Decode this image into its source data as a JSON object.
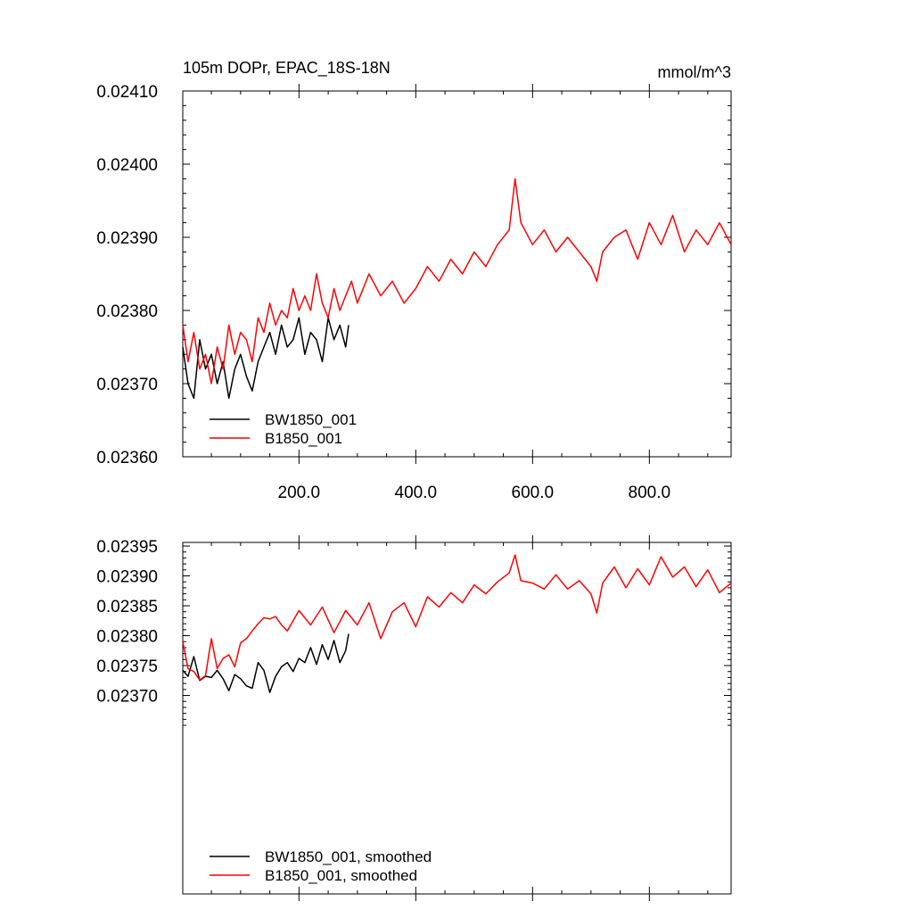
{
  "chart_data": [
    {
      "type": "line",
      "title": "105m DOPr, EPAC_18S-18N",
      "units": "mmol/m^3",
      "xlim": [
        1,
        940
      ],
      "ylim": [
        0.0236,
        0.0241
      ],
      "x_tick_labels": [
        "200.0",
        "400.0",
        "600.0",
        "800.0"
      ],
      "y_tick_labels": [
        "0.02360",
        "0.02370",
        "0.02380",
        "0.02390",
        "0.02400",
        "0.02410"
      ],
      "grid": false,
      "legend_position": "bottom-left",
      "series": [
        {
          "name": "BW1850_001",
          "color": "#000000",
          "x": [
            1,
            10,
            20,
            30,
            40,
            50,
            60,
            70,
            80,
            90,
            100,
            110,
            120,
            130,
            140,
            150,
            160,
            170,
            180,
            190,
            200,
            210,
            220,
            230,
            240,
            250,
            260,
            270,
            280,
            285
          ],
          "y": [
            0.02375,
            0.0237,
            0.02368,
            0.02376,
            0.02372,
            0.02374,
            0.0237,
            0.02373,
            0.02368,
            0.02372,
            0.02374,
            0.02371,
            0.02369,
            0.02373,
            0.02375,
            0.02377,
            0.02374,
            0.02378,
            0.02375,
            0.02376,
            0.02379,
            0.02374,
            0.02377,
            0.02376,
            0.02373,
            0.02379,
            0.02376,
            0.02378,
            0.02375,
            0.02378
          ]
        },
        {
          "name": "B1850_001",
          "color": "#ff0000",
          "x": [
            1,
            10,
            20,
            30,
            40,
            50,
            60,
            70,
            80,
            90,
            100,
            110,
            120,
            130,
            140,
            150,
            160,
            170,
            180,
            190,
            200,
            210,
            220,
            230,
            240,
            250,
            260,
            270,
            280,
            290,
            300,
            320,
            340,
            360,
            380,
            400,
            420,
            440,
            460,
            480,
            500,
            520,
            540,
            560,
            570,
            580,
            600,
            620,
            640,
            660,
            680,
            700,
            710,
            720,
            740,
            760,
            780,
            800,
            820,
            840,
            860,
            880,
            900,
            920,
            940
          ],
          "y": [
            0.02378,
            0.02373,
            0.02377,
            0.02372,
            0.02374,
            0.0237,
            0.02375,
            0.02372,
            0.02378,
            0.02374,
            0.02377,
            0.02376,
            0.02373,
            0.02379,
            0.02377,
            0.02381,
            0.02378,
            0.0238,
            0.02379,
            0.02383,
            0.0238,
            0.02382,
            0.0238,
            0.02385,
            0.02381,
            0.02379,
            0.02383,
            0.0238,
            0.02382,
            0.02384,
            0.02381,
            0.02385,
            0.02382,
            0.02384,
            0.02381,
            0.02383,
            0.02386,
            0.02384,
            0.02387,
            0.02385,
            0.02388,
            0.02386,
            0.02389,
            0.02391,
            0.02398,
            0.02392,
            0.02389,
            0.02391,
            0.02388,
            0.0239,
            0.02388,
            0.02386,
            0.02384,
            0.02388,
            0.0239,
            0.02391,
            0.02387,
            0.02392,
            0.02389,
            0.02393,
            0.02388,
            0.02391,
            0.02389,
            0.02392,
            0.02389
          ]
        }
      ]
    },
    {
      "type": "line",
      "xlim": [
        1,
        940
      ],
      "ylim": [
        0.023368,
        0.023956
      ],
      "y_tick_labels": [
        "0.02370",
        "0.02375",
        "0.02380",
        "0.02385",
        "0.02390",
        "0.02395"
      ],
      "grid": false,
      "legend_position": "bottom-left",
      "series": [
        {
          "name": "BW1850_001, smoothed",
          "color": "#000000",
          "x": [
            1,
            10,
            20,
            30,
            40,
            50,
            60,
            70,
            80,
            90,
            100,
            110,
            120,
            130,
            140,
            150,
            160,
            170,
            180,
            190,
            200,
            210,
            220,
            230,
            240,
            250,
            260,
            270,
            280,
            285
          ],
          "y": [
            0.023742,
            0.023732,
            0.023765,
            0.023725,
            0.023732,
            0.02373,
            0.023742,
            0.023728,
            0.023708,
            0.023735,
            0.023728,
            0.023716,
            0.023712,
            0.023755,
            0.023742,
            0.023705,
            0.023732,
            0.023748,
            0.023755,
            0.02374,
            0.023762,
            0.023755,
            0.02378,
            0.023752,
            0.023785,
            0.02376,
            0.023792,
            0.023755,
            0.023775,
            0.023803
          ]
        },
        {
          "name": "B1850_001, smoothed",
          "color": "#ff0000",
          "x": [
            1,
            10,
            20,
            30,
            40,
            50,
            60,
            70,
            80,
            90,
            100,
            110,
            120,
            130,
            140,
            150,
            160,
            170,
            180,
            200,
            220,
            240,
            260,
            280,
            300,
            320,
            340,
            360,
            380,
            400,
            420,
            440,
            460,
            480,
            500,
            520,
            540,
            560,
            570,
            580,
            600,
            620,
            640,
            660,
            680,
            700,
            710,
            720,
            740,
            760,
            780,
            800,
            820,
            840,
            860,
            880,
            900,
            920,
            940
          ],
          "y": [
            0.02379,
            0.023745,
            0.02374,
            0.023726,
            0.023733,
            0.023795,
            0.023745,
            0.023762,
            0.023768,
            0.023748,
            0.023788,
            0.023795,
            0.023808,
            0.02382,
            0.02383,
            0.023828,
            0.023832,
            0.023818,
            0.023808,
            0.023842,
            0.023818,
            0.023848,
            0.023805,
            0.023842,
            0.023818,
            0.023855,
            0.023795,
            0.02384,
            0.023855,
            0.023815,
            0.023865,
            0.023848,
            0.023872,
            0.023855,
            0.023885,
            0.02387,
            0.02389,
            0.023905,
            0.023935,
            0.023892,
            0.023888,
            0.023878,
            0.023902,
            0.023878,
            0.023892,
            0.02387,
            0.023838,
            0.023888,
            0.023915,
            0.02388,
            0.023912,
            0.023885,
            0.023932,
            0.023898,
            0.023915,
            0.023882,
            0.02391,
            0.023872,
            0.023888
          ]
        }
      ]
    }
  ]
}
